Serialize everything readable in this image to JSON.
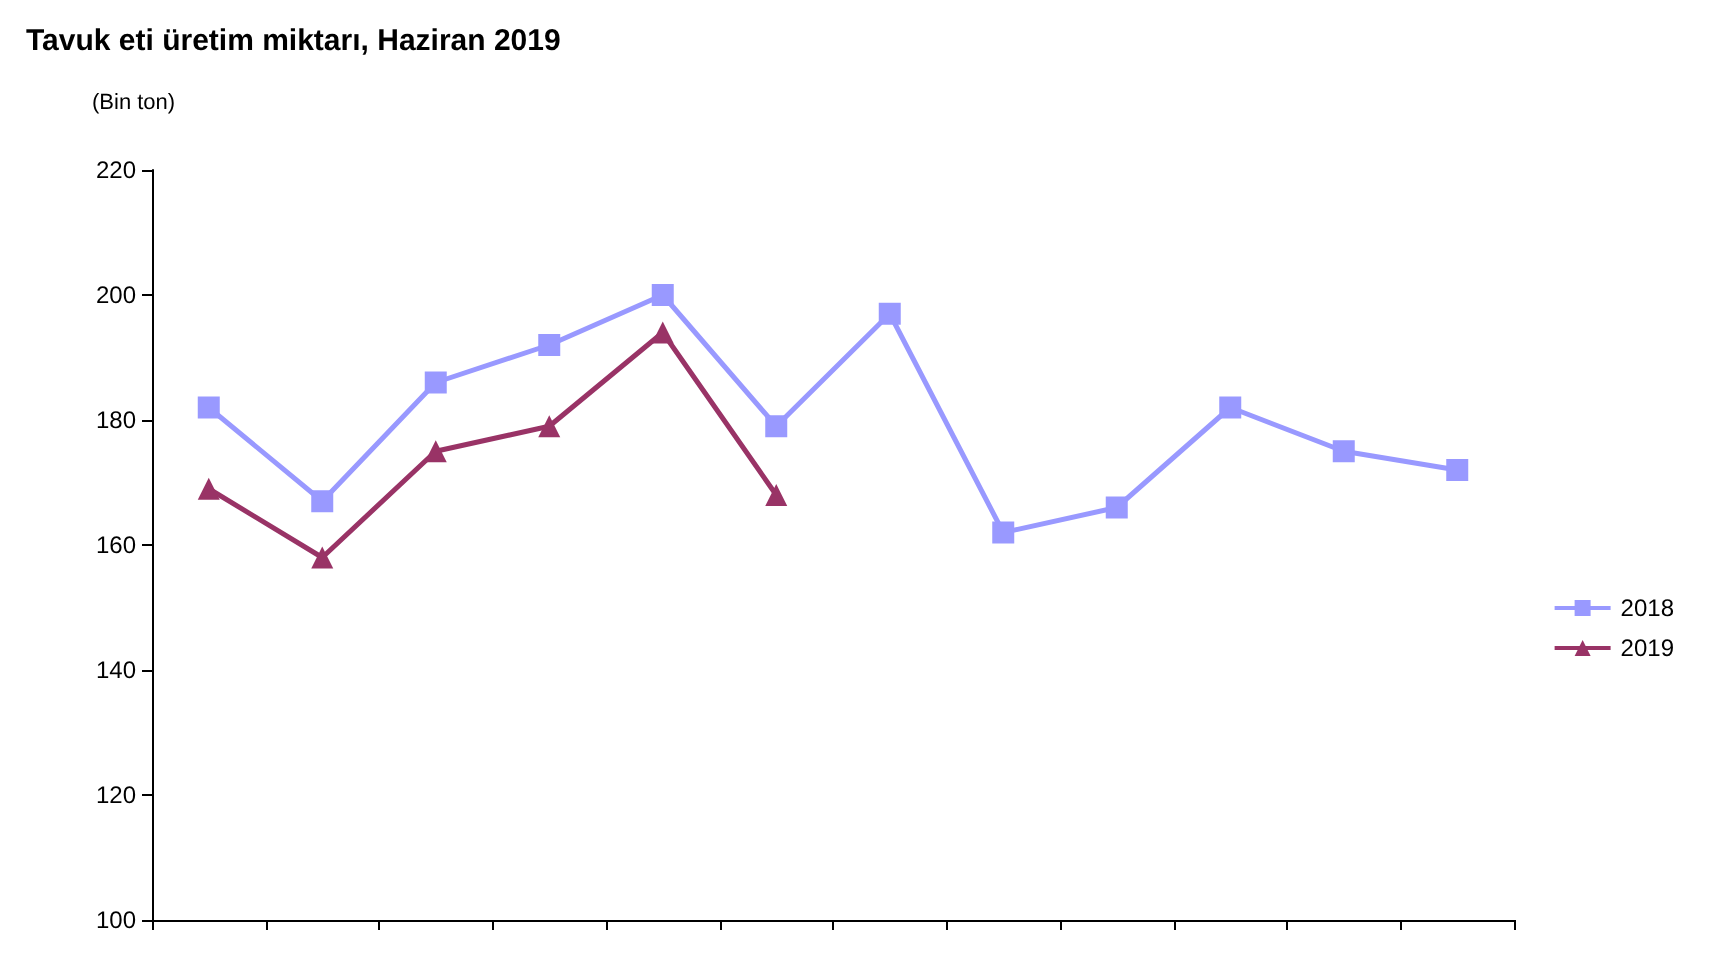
{
  "chart_data": {
    "type": "line",
    "title": "Tavuk eti üretim miktarı, Haziran 2019",
    "ylabel": "(Bin ton)",
    "categories": [
      null,
      null,
      null,
      null,
      null,
      null,
      null,
      null,
      null,
      null,
      null,
      null
    ],
    "series": [
      {
        "name": "2018",
        "color": "#9999ff",
        "marker": "square",
        "values": [
          182,
          167,
          186,
          192,
          200,
          179,
          197,
          162,
          166,
          182,
          175,
          172
        ]
      },
      {
        "name": "2019",
        "color": "#993366",
        "marker": "triangle",
        "values": [
          169,
          158,
          175,
          179,
          194,
          168,
          null,
          null,
          null,
          null,
          null,
          null
        ]
      }
    ],
    "ylim": [
      100,
      220
    ],
    "yticks": [
      100,
      120,
      140,
      160,
      180,
      200,
      220
    ],
    "grid": false,
    "legend": "right",
    "tick_labels": "y",
    "line_style": "solid"
  }
}
